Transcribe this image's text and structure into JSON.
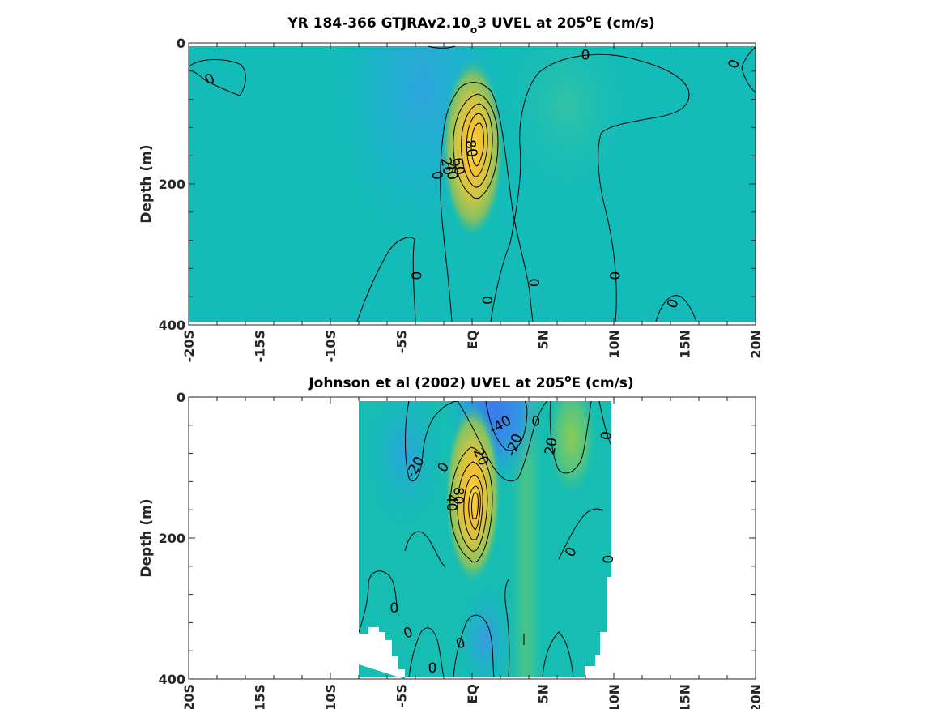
{
  "chart_data": [
    {
      "type": "heatmap",
      "title_parts": {
        "before": "YR 184-366 GTJRAv2.10",
        "subscript": "o",
        "middle": "3 UVEL at 205",
        "superscript": "o",
        "after": "E (cm/s)"
      },
      "ylabel": "Depth (m)",
      "xlim": [
        -20,
        20
      ],
      "ylim": [
        0,
        400
      ],
      "y_reversed": true,
      "x_ticks": [
        -20,
        -15,
        -10,
        -5,
        0,
        5,
        10,
        15,
        20
      ],
      "x_tick_labels": [
        "-20S",
        "-15S",
        "-10S",
        "-5S",
        "EQ",
        "5N",
        "10N",
        "15N",
        "20N"
      ],
      "y_ticks": [
        0,
        200,
        400
      ],
      "y_tick_labels": [
        "0",
        "200",
        "400"
      ],
      "data_extent": {
        "x": [
          -20,
          20
        ],
        "y": [
          5,
          395
        ]
      },
      "background_value_cm_s": 0,
      "features": [
        {
          "name": "undercurrent core",
          "x": 0,
          "depth": 150,
          "max_value": 90,
          "width_deg": 1.0,
          "depth_scale": 55
        },
        {
          "name": "surface westward flow",
          "x": -2,
          "depth": 20,
          "max_value": -10,
          "width_deg": 3,
          "depth_scale": 80
        }
      ],
      "contour_labels": [
        {
          "text": "0",
          "x": -18.5,
          "depth": 52,
          "rotation": -30
        },
        {
          "text": "0",
          "x": 8,
          "depth": 18,
          "rotation": 0
        },
        {
          "text": "0",
          "x": 18.5,
          "depth": 30,
          "rotation": -70
        },
        {
          "text": "80",
          "x": -0.1,
          "depth": 150,
          "rotation": 80
        },
        {
          "text": "60",
          "x": -1.0,
          "depth": 175,
          "rotation": 80
        },
        {
          "text": "40",
          "x": -1.5,
          "depth": 182,
          "rotation": 80
        },
        {
          "text": "20",
          "x": -1.8,
          "depth": 175,
          "rotation": 80
        },
        {
          "text": "0",
          "x": -2.5,
          "depth": 188,
          "rotation": 80
        },
        {
          "text": "0",
          "x": -4,
          "depth": 330,
          "rotation": 90
        },
        {
          "text": "0",
          "x": 1,
          "depth": 365,
          "rotation": 90
        },
        {
          "text": "0",
          "x": 4.3,
          "depth": 340,
          "rotation": 90
        },
        {
          "text": "0",
          "x": 10,
          "depth": 330,
          "rotation": 90
        },
        {
          "text": "0",
          "x": 14.2,
          "depth": 370,
          "rotation": -70
        }
      ]
    },
    {
      "type": "heatmap",
      "title_parts": {
        "before": "Johnson et al (2002) UVEL at 205",
        "superscript": "o",
        "after": "E (cm/s)"
      },
      "ylabel": "Depth (m)",
      "xlim": [
        -20,
        20
      ],
      "ylim": [
        0,
        400
      ],
      "y_reversed": true,
      "x_ticks": [
        -20,
        -15,
        -10,
        -5,
        0,
        5,
        10,
        15,
        20
      ],
      "x_tick_labels": [
        "-20S",
        "-15S",
        "-10S",
        "-5S",
        "EQ",
        "5N",
        "10N",
        "15N",
        "20N"
      ],
      "y_ticks": [
        0,
        200,
        400
      ],
      "y_tick_labels": [
        "0",
        "200",
        "400"
      ],
      "data_extent": {
        "x": [
          -8,
          10
        ],
        "y": [
          5,
          400
        ]
      },
      "background_value_cm_s": 0,
      "features": [
        {
          "name": "undercurrent core",
          "x": 0,
          "depth": 135,
          "max_value": 100,
          "width_deg": 1.0,
          "depth_scale": 55
        },
        {
          "name": "south equatorial current",
          "x": 1.5,
          "depth": 15,
          "max_value": -45,
          "width_deg": 1.5,
          "depth_scale": 45
        },
        {
          "name": "north equatorial countercurrent",
          "x": 7,
          "depth": 40,
          "max_value": 25,
          "width_deg": 1.2,
          "depth_scale": 70
        }
      ],
      "contour_labels": [
        {
          "text": "-20",
          "x": -4,
          "depth": 100,
          "rotation": -60
        },
        {
          "text": "0",
          "x": -2,
          "depth": 100,
          "rotation": -60
        },
        {
          "text": "20",
          "x": 0.6,
          "depth": 85,
          "rotation": 65
        },
        {
          "text": "-20",
          "x": 3,
          "depth": 68,
          "rotation": -70
        },
        {
          "text": "-40",
          "x": 2,
          "depth": 40,
          "rotation": -30
        },
        {
          "text": "0",
          "x": 4.5,
          "depth": 35,
          "rotation": 0
        },
        {
          "text": "20",
          "x": 5.6,
          "depth": 70,
          "rotation": -80
        },
        {
          "text": "0",
          "x": 9.5,
          "depth": 55,
          "rotation": -80
        },
        {
          "text": "80",
          "x": -1,
          "depth": 140,
          "rotation": 90
        },
        {
          "text": "40",
          "x": -1.5,
          "depth": 150,
          "rotation": 90
        },
        {
          "text": "0",
          "x": 7,
          "depth": 220,
          "rotation": -60
        },
        {
          "text": "0",
          "x": 9.5,
          "depth": 230,
          "rotation": 90
        },
        {
          "text": "0",
          "x": -5.5,
          "depth": 300,
          "rotation": 0
        },
        {
          "text": "0",
          "x": -4.5,
          "depth": 335,
          "rotation": -20
        },
        {
          "text": "0",
          "x": -0.8,
          "depth": 350,
          "rotation": -20
        },
        {
          "text": "0",
          "x": -2.8,
          "depth": 385,
          "rotation": 0
        }
      ]
    }
  ]
}
